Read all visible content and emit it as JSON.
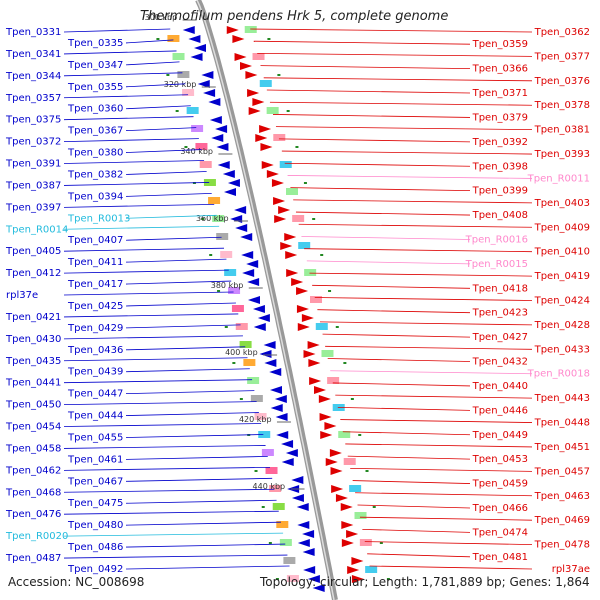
{
  "title": "Thermofilum pendens Hrk 5, complete genome",
  "footer": {
    "accession": "Accession: NC_008698",
    "stats": "Topology: circular; Length: 1,781,889 bp; Genes: 1,864"
  },
  "colors": {
    "minus_strand": "#0000cc",
    "plus_strand": "#dd0000",
    "rna_minus": "#22bbdd",
    "rna_plus": "#ff88cc",
    "backbone": "#999999"
  },
  "scale_ticks": [
    "300 kbp",
    "320 kbp",
    "340 kbp",
    "360 kbp",
    "380 kbp",
    "400 kbp",
    "420 kbp",
    "440 kbp"
  ],
  "left_labels": [
    {
      "text": "Tpen_0331",
      "kind": "gene"
    },
    {
      "text": "Tpen_0335",
      "kind": "gene"
    },
    {
      "text": "Tpen_0341",
      "kind": "gene"
    },
    {
      "text": "Tpen_0347",
      "kind": "gene"
    },
    {
      "text": "Tpen_0344",
      "kind": "gene"
    },
    {
      "text": "Tpen_0355",
      "kind": "gene"
    },
    {
      "text": "Tpen_0357",
      "kind": "gene"
    },
    {
      "text": "Tpen_0360",
      "kind": "gene"
    },
    {
      "text": "Tpen_0375",
      "kind": "gene"
    },
    {
      "text": "Tpen_0367",
      "kind": "gene"
    },
    {
      "text": "Tpen_0372",
      "kind": "gene"
    },
    {
      "text": "Tpen_0380",
      "kind": "gene"
    },
    {
      "text": "Tpen_0391",
      "kind": "gene"
    },
    {
      "text": "Tpen_0382",
      "kind": "gene"
    },
    {
      "text": "Tpen_0387",
      "kind": "gene"
    },
    {
      "text": "Tpen_0394",
      "kind": "gene"
    },
    {
      "text": "Tpen_0397",
      "kind": "gene"
    },
    {
      "text": "Tpen_R0013",
      "kind": "rna"
    },
    {
      "text": "Tpen_R0014",
      "kind": "rna"
    },
    {
      "text": "Tpen_0407",
      "kind": "gene"
    },
    {
      "text": "Tpen_0405",
      "kind": "gene"
    },
    {
      "text": "Tpen_0411",
      "kind": "gene"
    },
    {
      "text": "Tpen_0412",
      "kind": "gene"
    },
    {
      "text": "Tpen_0417",
      "kind": "gene"
    },
    {
      "text": "rpl37e",
      "kind": "gene"
    },
    {
      "text": "Tpen_0425",
      "kind": "gene"
    },
    {
      "text": "Tpen_0421",
      "kind": "gene"
    },
    {
      "text": "Tpen_0429",
      "kind": "gene"
    },
    {
      "text": "Tpen_0430",
      "kind": "gene"
    },
    {
      "text": "Tpen_0436",
      "kind": "gene"
    },
    {
      "text": "Tpen_0435",
      "kind": "gene"
    },
    {
      "text": "Tpen_0439",
      "kind": "gene"
    },
    {
      "text": "Tpen_0441",
      "kind": "gene"
    },
    {
      "text": "Tpen_0447",
      "kind": "gene"
    },
    {
      "text": "Tpen_0450",
      "kind": "gene"
    },
    {
      "text": "Tpen_0444",
      "kind": "gene"
    },
    {
      "text": "Tpen_0454",
      "kind": "gene"
    },
    {
      "text": "Tpen_0455",
      "kind": "gene"
    },
    {
      "text": "Tpen_0458",
      "kind": "gene"
    },
    {
      "text": "Tpen_0461",
      "kind": "gene"
    },
    {
      "text": "Tpen_0462",
      "kind": "gene"
    },
    {
      "text": "Tpen_0467",
      "kind": "gene"
    },
    {
      "text": "Tpen_0468",
      "kind": "gene"
    },
    {
      "text": "Tpen_0475",
      "kind": "gene"
    },
    {
      "text": "Tpen_0476",
      "kind": "gene"
    },
    {
      "text": "Tpen_0480",
      "kind": "gene"
    },
    {
      "text": "Tpen_R0020",
      "kind": "rna"
    },
    {
      "text": "Tpen_0486",
      "kind": "gene"
    },
    {
      "text": "Tpen_0487",
      "kind": "gene"
    },
    {
      "text": "Tpen_0492",
      "kind": "gene"
    }
  ],
  "right_labels": [
    {
      "text": "Tpen_0362",
      "kind": "gene"
    },
    {
      "text": "Tpen_0359",
      "kind": "gene"
    },
    {
      "text": "Tpen_0377",
      "kind": "gene"
    },
    {
      "text": "Tpen_0366",
      "kind": "gene"
    },
    {
      "text": "Tpen_0376",
      "kind": "gene"
    },
    {
      "text": "Tpen_0371",
      "kind": "gene"
    },
    {
      "text": "Tpen_0378",
      "kind": "gene"
    },
    {
      "text": "Tpen_0379",
      "kind": "gene"
    },
    {
      "text": "Tpen_0381",
      "kind": "gene"
    },
    {
      "text": "Tpen_0392",
      "kind": "gene"
    },
    {
      "text": "Tpen_0393",
      "kind": "gene"
    },
    {
      "text": "Tpen_0398",
      "kind": "gene"
    },
    {
      "text": "Tpen_R0011",
      "kind": "rna"
    },
    {
      "text": "Tpen_0399",
      "kind": "gene"
    },
    {
      "text": "Tpen_0403",
      "kind": "gene"
    },
    {
      "text": "Tpen_0408",
      "kind": "gene"
    },
    {
      "text": "Tpen_0409",
      "kind": "gene"
    },
    {
      "text": "Tpen_R0016",
      "kind": "rna"
    },
    {
      "text": "Tpen_0410",
      "kind": "gene"
    },
    {
      "text": "Tpen_R0015",
      "kind": "rna"
    },
    {
      "text": "Tpen_0419",
      "kind": "gene"
    },
    {
      "text": "Tpen_0418",
      "kind": "gene"
    },
    {
      "text": "Tpen_0424",
      "kind": "gene"
    },
    {
      "text": "Tpen_0423",
      "kind": "gene"
    },
    {
      "text": "Tpen_0428",
      "kind": "gene"
    },
    {
      "text": "Tpen_0427",
      "kind": "gene"
    },
    {
      "text": "Tpen_0433",
      "kind": "gene"
    },
    {
      "text": "Tpen_0432",
      "kind": "gene"
    },
    {
      "text": "Tpen_R0018",
      "kind": "rna"
    },
    {
      "text": "Tpen_0440",
      "kind": "gene"
    },
    {
      "text": "Tpen_0443",
      "kind": "gene"
    },
    {
      "text": "Tpen_0446",
      "kind": "gene"
    },
    {
      "text": "Tpen_0448",
      "kind": "gene"
    },
    {
      "text": "Tpen_0449",
      "kind": "gene"
    },
    {
      "text": "Tpen_0451",
      "kind": "gene"
    },
    {
      "text": "Tpen_0453",
      "kind": "gene"
    },
    {
      "text": "Tpen_0457",
      "kind": "gene"
    },
    {
      "text": "Tpen_0459",
      "kind": "gene"
    },
    {
      "text": "Tpen_0463",
      "kind": "gene"
    },
    {
      "text": "Tpen_0466",
      "kind": "gene"
    },
    {
      "text": "Tpen_0469",
      "kind": "gene"
    },
    {
      "text": "Tpen_0474",
      "kind": "gene"
    },
    {
      "text": "Tpen_0478",
      "kind": "gene"
    },
    {
      "text": "Tpen_0481",
      "kind": "gene"
    },
    {
      "text": "rpl37ae",
      "kind": "gene"
    }
  ]
}
